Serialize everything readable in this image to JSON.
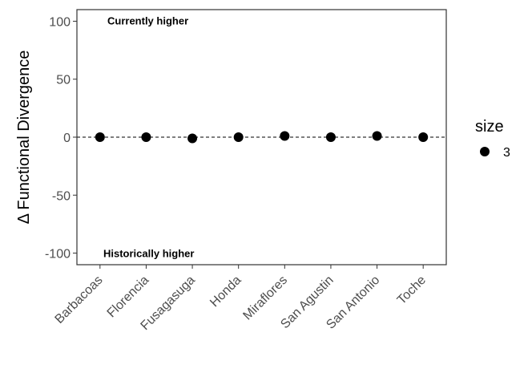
{
  "chart_data": {
    "type": "scatter",
    "title": "",
    "xlabel": "",
    "ylabel": "Δ Functional Divergence",
    "categories": [
      "Barbacoas",
      "Florencia",
      "Fusagasuga",
      "Honda",
      "Miraflores",
      "San Agustin",
      "San Antonio",
      "Toche"
    ],
    "values": [
      0,
      0,
      -1,
      0,
      1,
      0,
      1,
      0
    ],
    "ylim": [
      -110,
      110
    ],
    "yticks": [
      -100,
      -50,
      0,
      50,
      100
    ],
    "reference_line": 0,
    "point_color": "#000000",
    "grid": false,
    "annotations": {
      "top": "Currently higher",
      "bottom": "Historically higher"
    },
    "legend": {
      "placement": "right",
      "title": "size",
      "entries": [
        "3"
      ]
    }
  }
}
